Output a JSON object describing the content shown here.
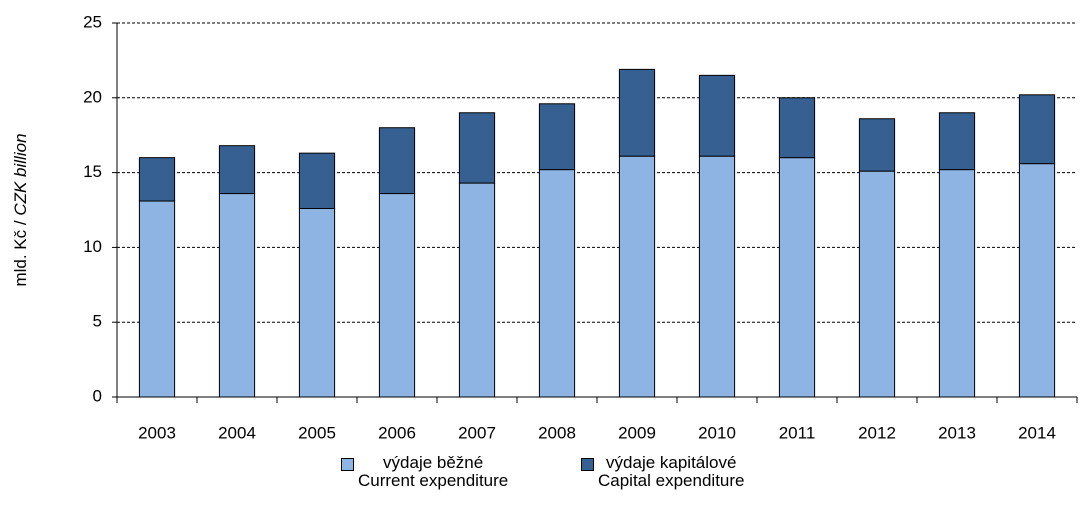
{
  "chart_data": {
    "type": "stacked_bar",
    "y_label": {
      "local": "mld. Kč / ",
      "english": "CZK billion"
    },
    "categories": [
      "2003",
      "2004",
      "2005",
      "2006",
      "2007",
      "2008",
      "2009",
      "2010",
      "2011",
      "2012",
      "2013",
      "2014"
    ],
    "series": [
      {
        "name": "výdaje běžné\nCurrent expenditure",
        "color": "#8eb4e3",
        "values": [
          13.1,
          13.6,
          12.6,
          13.6,
          14.3,
          15.2,
          16.1,
          16.1,
          16.0,
          15.1,
          15.2,
          15.6
        ]
      },
      {
        "name": "výdaje kapitálové\nCapital expenditure",
        "color": "#366092",
        "values": [
          2.9,
          3.2,
          3.7,
          4.4,
          4.7,
          4.4,
          5.8,
          5.4,
          4.0,
          3.5,
          3.8,
          4.6
        ]
      }
    ],
    "ylim": [
      0,
      25
    ],
    "yticks": [
      0,
      5,
      10,
      15,
      20,
      25
    ],
    "grid": true,
    "legend": "bottom"
  }
}
